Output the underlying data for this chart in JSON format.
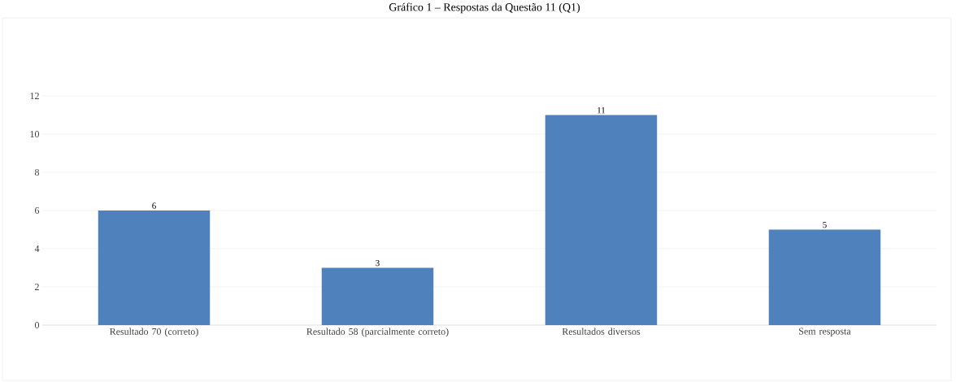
{
  "chart_data": {
    "type": "bar",
    "title": "Gráfico 1 – Respostas da Questão 11 (Q1)",
    "categories": [
      "Resultado 70 (correto)",
      "Resultado 58 (parcialmente correto)",
      "Resultados diversos",
      "Sem resposta"
    ],
    "values": [
      6,
      3,
      11,
      5
    ],
    "color": "#4f81bd",
    "ylim": [
      0,
      12
    ],
    "yticks": [
      0,
      2,
      4,
      6,
      8,
      10,
      12
    ],
    "grid": "y",
    "data_labels": true
  }
}
